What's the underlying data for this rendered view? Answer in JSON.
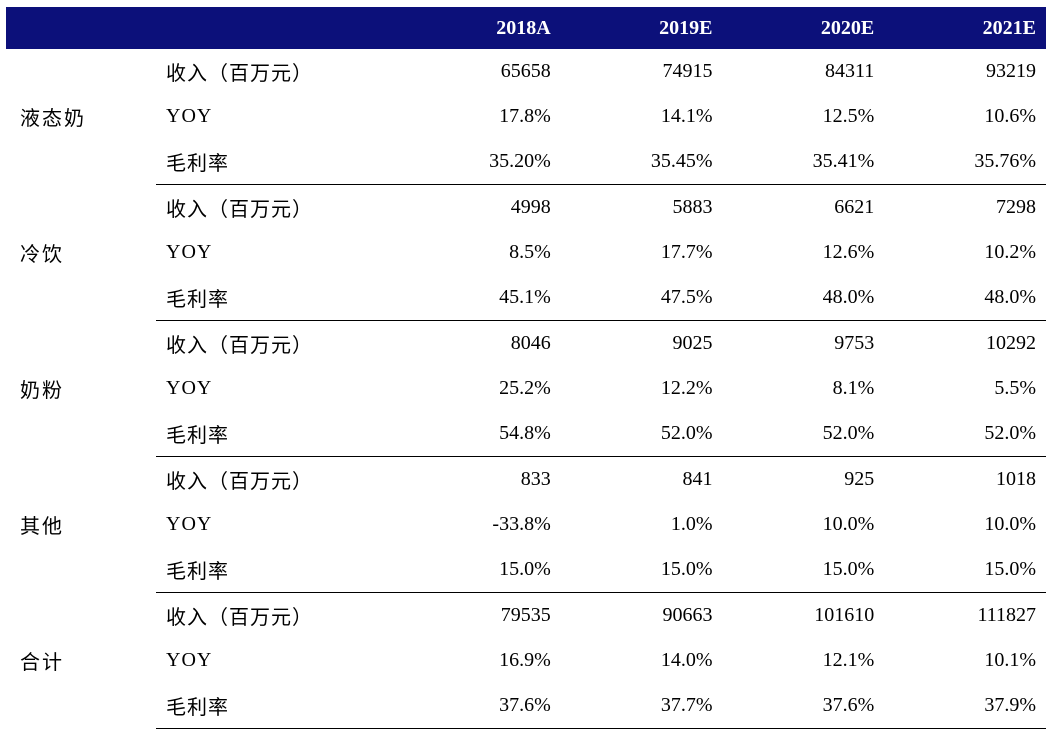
{
  "header": {
    "blank": "",
    "years": [
      "2018A",
      "2019E",
      "2020E",
      "2021E"
    ]
  },
  "segments": [
    {
      "name": "液态奶",
      "rows": [
        {
          "metric": "收入（百万元）",
          "values": [
            "65658",
            "74915",
            "84311",
            "93219"
          ]
        },
        {
          "metric": "YOY",
          "values": [
            "17.8%",
            "14.1%",
            "12.5%",
            "10.6%"
          ]
        },
        {
          "metric": "毛利率",
          "values": [
            "35.20%",
            "35.45%",
            "35.41%",
            "35.76%"
          ]
        }
      ]
    },
    {
      "name": "冷饮",
      "rows": [
        {
          "metric": "收入（百万元）",
          "values": [
            "4998",
            "5883",
            "6621",
            "7298"
          ]
        },
        {
          "metric": "YOY",
          "values": [
            "8.5%",
            "17.7%",
            "12.6%",
            "10.2%"
          ]
        },
        {
          "metric": "毛利率",
          "values": [
            "45.1%",
            "47.5%",
            "48.0%",
            "48.0%"
          ]
        }
      ]
    },
    {
      "name": "奶粉",
      "rows": [
        {
          "metric": "收入（百万元）",
          "values": [
            "8046",
            "9025",
            "9753",
            "10292"
          ]
        },
        {
          "metric": "YOY",
          "values": [
            "25.2%",
            "12.2%",
            "8.1%",
            "5.5%"
          ]
        },
        {
          "metric": "毛利率",
          "values": [
            "54.8%",
            "52.0%",
            "52.0%",
            "52.0%"
          ]
        }
      ]
    },
    {
      "name": "其他",
      "rows": [
        {
          "metric": "收入（百万元）",
          "values": [
            "833",
            "841",
            "925",
            "1018"
          ]
        },
        {
          "metric": "YOY",
          "values": [
            "-33.8%",
            "1.0%",
            "10.0%",
            "10.0%"
          ]
        },
        {
          "metric": "毛利率",
          "values": [
            "15.0%",
            "15.0%",
            "15.0%",
            "15.0%"
          ]
        }
      ]
    },
    {
      "name": "合计",
      "rows": [
        {
          "metric": "收入（百万元）",
          "values": [
            "79535",
            "90663",
            "101610",
            "111827"
          ]
        },
        {
          "metric": "YOY",
          "values": [
            "16.9%",
            "14.0%",
            "12.1%",
            "10.1%"
          ]
        },
        {
          "metric": "毛利率",
          "values": [
            "37.6%",
            "37.7%",
            "37.6%",
            "37.9%"
          ]
        }
      ]
    }
  ],
  "colors": {
    "header_bg": "#0c107a",
    "header_text": "#ffffff",
    "rule": "#000000"
  }
}
